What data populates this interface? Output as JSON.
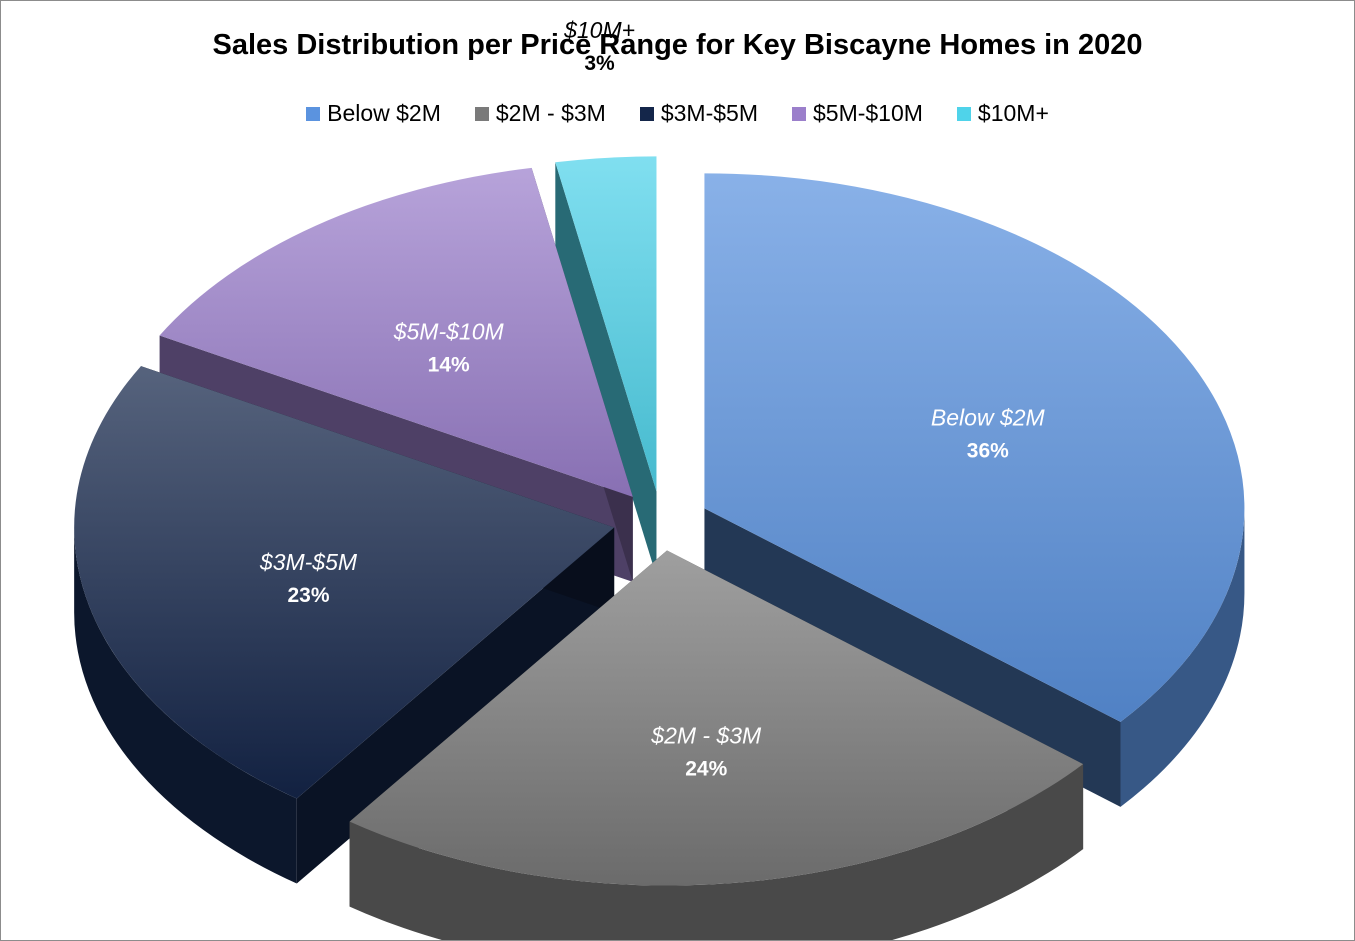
{
  "chart_data": {
    "type": "pie",
    "title": "Sales Distribution per Price Range for Key Biscayne Homes in 2020",
    "legend_position": "top",
    "style": "3d-exploded",
    "slices": [
      {
        "name": "Below $2M",
        "value": 36,
        "label": "36%",
        "color": "#5b93df"
      },
      {
        "name": "$2M - $3M",
        "value": 24,
        "label": "24%",
        "color": "#7a7a7a"
      },
      {
        "name": "$3M-$5M",
        "value": 23,
        "label": "23%",
        "color": "#14264a"
      },
      {
        "name": "$5M-$10M",
        "value": 14,
        "label": "14%",
        "color": "#9b7fcb"
      },
      {
        "name": "$10M+",
        "value": 3,
        "label": "3%",
        "color": "#4fd3ea"
      }
    ]
  }
}
